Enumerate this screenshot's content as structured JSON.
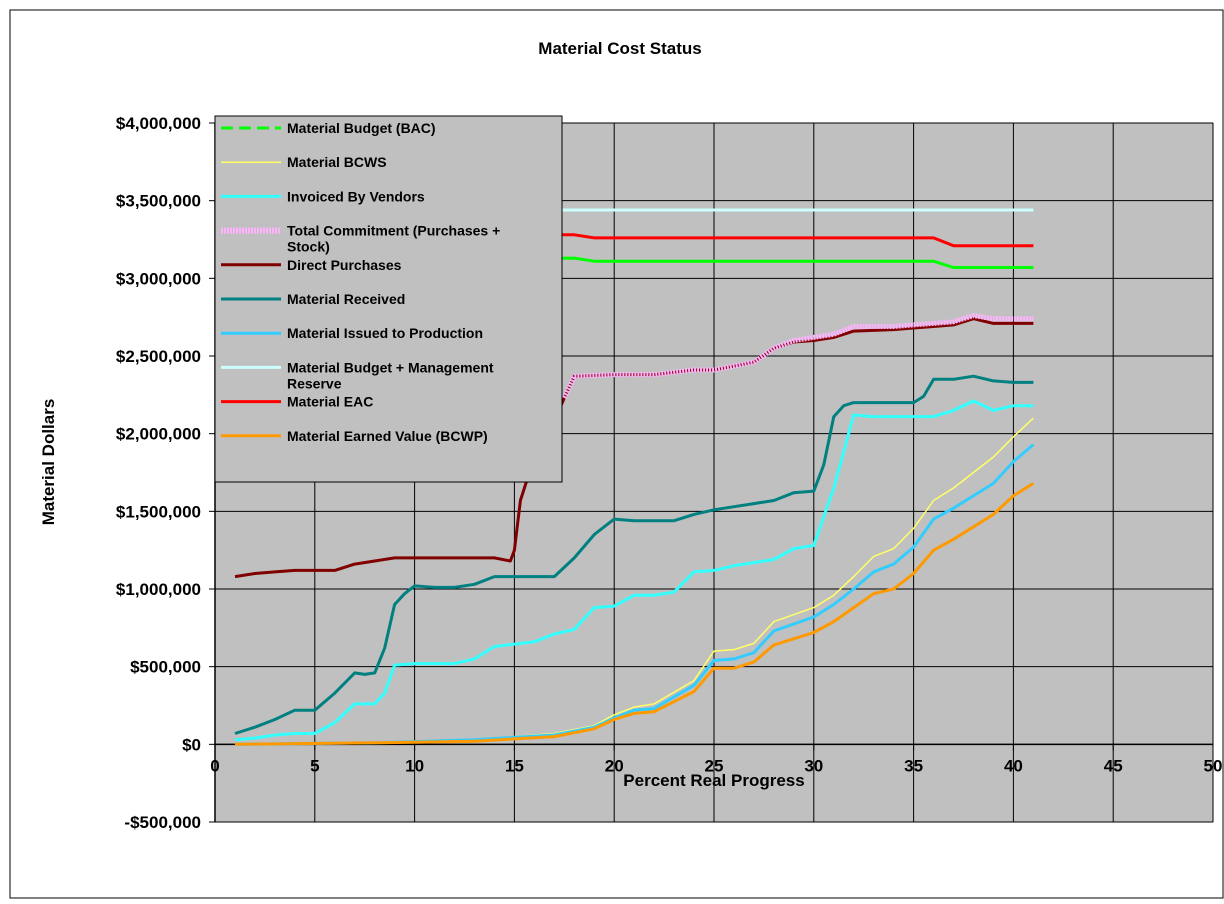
{
  "chart_data": {
    "type": "line",
    "title": "Material Cost Status",
    "xlabel": "Percent Real Progress",
    "ylabel": "Material Dollars",
    "xlim": [
      0,
      50
    ],
    "ylim": [
      -500000,
      4000000
    ],
    "x_ticks": [
      0,
      5,
      10,
      15,
      20,
      25,
      30,
      35,
      40,
      45,
      50
    ],
    "x_tick_labels": [
      "0",
      "5",
      "10",
      "15",
      "20",
      "25",
      "30",
      "35",
      "40",
      "45",
      "50"
    ],
    "y_ticks": [
      -500000,
      0,
      500000,
      1000000,
      1500000,
      2000000,
      2500000,
      3000000,
      3500000,
      4000000
    ],
    "y_tick_labels": [
      "-$500,000",
      "$0",
      "$500,000",
      "$1,000,000",
      "$1,500,000",
      "$2,000,000",
      "$2,500,000",
      "$3,000,000",
      "$3,500,000",
      "$4,000,000"
    ],
    "grid": true,
    "plot_background": "#c0c0c0",
    "legend_position": "top-left",
    "series": [
      {
        "name": "Material Budget (BAC)",
        "color": "#00ff00",
        "dash": true,
        "points": [
          [
            1,
            3110000
          ],
          [
            18,
            3130000
          ],
          [
            19,
            3110000
          ],
          [
            36,
            3110000
          ],
          [
            37,
            3070000
          ],
          [
            41,
            3070000
          ]
        ]
      },
      {
        "name": "Material BCWS",
        "color": "#ffff66",
        "points": [
          [
            1,
            0
          ],
          [
            8,
            10000
          ],
          [
            13,
            30000
          ],
          [
            17,
            70000
          ],
          [
            19,
            120000
          ],
          [
            20,
            190000
          ],
          [
            21,
            240000
          ],
          [
            22,
            260000
          ],
          [
            24,
            410000
          ],
          [
            25,
            600000
          ],
          [
            26,
            610000
          ],
          [
            27,
            650000
          ],
          [
            28,
            790000
          ],
          [
            30,
            880000
          ],
          [
            31,
            960000
          ],
          [
            32,
            1080000
          ],
          [
            33,
            1210000
          ],
          [
            34,
            1260000
          ],
          [
            35,
            1390000
          ],
          [
            36,
            1570000
          ],
          [
            37,
            1650000
          ],
          [
            39,
            1850000
          ],
          [
            40,
            1980000
          ],
          [
            41,
            2100000
          ]
        ]
      },
      {
        "name": "Invoiced By Vendors",
        "color": "#33ffff",
        "points": [
          [
            1,
            30000
          ],
          [
            2,
            40000
          ],
          [
            3,
            60000
          ],
          [
            4,
            70000
          ],
          [
            5,
            70000
          ],
          [
            6,
            140000
          ],
          [
            7,
            260000
          ],
          [
            8,
            260000
          ],
          [
            8.5,
            330000
          ],
          [
            9,
            510000
          ],
          [
            10,
            520000
          ],
          [
            12,
            520000
          ],
          [
            13,
            550000
          ],
          [
            14,
            630000
          ],
          [
            16,
            660000
          ],
          [
            17,
            710000
          ],
          [
            18,
            740000
          ],
          [
            19,
            880000
          ],
          [
            20,
            890000
          ],
          [
            21,
            960000
          ],
          [
            22,
            960000
          ],
          [
            23,
            980000
          ],
          [
            24,
            1110000
          ],
          [
            25,
            1120000
          ],
          [
            26,
            1150000
          ],
          [
            27,
            1170000
          ],
          [
            28,
            1190000
          ],
          [
            29,
            1260000
          ],
          [
            30,
            1280000
          ],
          [
            31,
            1650000
          ],
          [
            32,
            2120000
          ],
          [
            33,
            2110000
          ],
          [
            36,
            2110000
          ],
          [
            37,
            2150000
          ],
          [
            38,
            2210000
          ],
          [
            39,
            2150000
          ],
          [
            40,
            2180000
          ],
          [
            41,
            2180000
          ]
        ]
      },
      {
        "name": "Total Commitment (Purchases + Stock)",
        "color": "#ffb3ff",
        "points": [
          [
            17.5,
            2230000
          ],
          [
            18,
            2370000
          ],
          [
            20,
            2380000
          ],
          [
            22,
            2380000
          ],
          [
            24,
            2410000
          ],
          [
            25,
            2410000
          ],
          [
            27,
            2460000
          ],
          [
            28,
            2550000
          ],
          [
            29,
            2600000
          ],
          [
            30,
            2620000
          ],
          [
            31,
            2640000
          ],
          [
            32,
            2690000
          ],
          [
            34,
            2690000
          ],
          [
            35,
            2700000
          ],
          [
            36,
            2710000
          ],
          [
            37,
            2720000
          ],
          [
            38,
            2760000
          ],
          [
            39,
            2740000
          ],
          [
            41,
            2740000
          ]
        ]
      },
      {
        "name": "Direct Purchases",
        "color": "#800000",
        "points": [
          [
            1,
            1080000
          ],
          [
            2,
            1100000
          ],
          [
            3,
            1110000
          ],
          [
            4,
            1120000
          ],
          [
            5,
            1120000
          ],
          [
            6,
            1120000
          ],
          [
            7,
            1160000
          ],
          [
            8,
            1180000
          ],
          [
            9,
            1200000
          ],
          [
            10,
            1200000
          ],
          [
            12,
            1200000
          ],
          [
            13,
            1200000
          ],
          [
            14,
            1200000
          ],
          [
            14.8,
            1180000
          ],
          [
            15,
            1250000
          ],
          [
            15.3,
            1570000
          ],
          [
            15.6,
            1690000
          ],
          [
            16,
            1950000
          ],
          [
            17,
            2080000
          ],
          [
            17.5,
            2230000
          ],
          [
            18,
            2370000
          ],
          [
            20,
            2380000
          ],
          [
            22,
            2380000
          ],
          [
            24,
            2410000
          ],
          [
            25,
            2410000
          ],
          [
            27,
            2460000
          ],
          [
            28,
            2550000
          ],
          [
            29,
            2590000
          ],
          [
            30,
            2600000
          ],
          [
            31,
            2620000
          ],
          [
            32,
            2660000
          ],
          [
            34,
            2670000
          ],
          [
            35,
            2680000
          ],
          [
            36,
            2690000
          ],
          [
            37,
            2700000
          ],
          [
            38,
            2740000
          ],
          [
            39,
            2710000
          ],
          [
            41,
            2710000
          ]
        ]
      },
      {
        "name": "Material Received",
        "color": "#008080",
        "points": [
          [
            1,
            70000
          ],
          [
            2,
            110000
          ],
          [
            3,
            160000
          ],
          [
            4,
            220000
          ],
          [
            4.5,
            220000
          ],
          [
            5,
            220000
          ],
          [
            6,
            330000
          ],
          [
            7,
            460000
          ],
          [
            7.5,
            450000
          ],
          [
            8,
            460000
          ],
          [
            8.5,
            620000
          ],
          [
            9,
            900000
          ],
          [
            9.5,
            970000
          ],
          [
            10,
            1020000
          ],
          [
            11,
            1010000
          ],
          [
            12,
            1010000
          ],
          [
            13,
            1030000
          ],
          [
            14,
            1080000
          ],
          [
            16,
            1080000
          ],
          [
            17,
            1080000
          ],
          [
            18,
            1200000
          ],
          [
            19,
            1350000
          ],
          [
            20,
            1450000
          ],
          [
            21,
            1440000
          ],
          [
            23,
            1440000
          ],
          [
            24,
            1480000
          ],
          [
            25,
            1510000
          ],
          [
            26,
            1530000
          ],
          [
            27,
            1550000
          ],
          [
            28,
            1570000
          ],
          [
            29,
            1620000
          ],
          [
            30,
            1630000
          ],
          [
            30.5,
            1800000
          ],
          [
            31,
            2110000
          ],
          [
            31.5,
            2180000
          ],
          [
            32,
            2200000
          ],
          [
            34,
            2200000
          ],
          [
            35,
            2200000
          ],
          [
            35.5,
            2240000
          ],
          [
            36,
            2350000
          ],
          [
            37,
            2350000
          ],
          [
            38,
            2370000
          ],
          [
            39,
            2340000
          ],
          [
            40,
            2330000
          ],
          [
            41,
            2330000
          ]
        ]
      },
      {
        "name": "Material Issued to Production",
        "color": "#33ccff",
        "points": [
          [
            1,
            0
          ],
          [
            8,
            10000
          ],
          [
            13,
            30000
          ],
          [
            17,
            60000
          ],
          [
            19,
            110000
          ],
          [
            20,
            170000
          ],
          [
            21,
            220000
          ],
          [
            22,
            230000
          ],
          [
            24,
            380000
          ],
          [
            25,
            540000
          ],
          [
            26,
            550000
          ],
          [
            27,
            590000
          ],
          [
            28,
            730000
          ],
          [
            30,
            820000
          ],
          [
            31,
            900000
          ],
          [
            32,
            1000000
          ],
          [
            33,
            1110000
          ],
          [
            34,
            1160000
          ],
          [
            35,
            1270000
          ],
          [
            36,
            1450000
          ],
          [
            37,
            1520000
          ],
          [
            39,
            1680000
          ],
          [
            40,
            1820000
          ],
          [
            41,
            1930000
          ]
        ]
      },
      {
        "name": "Material Budget + Management Reserve",
        "color": "#ccffff",
        "points": [
          [
            14,
            3440000
          ],
          [
            41,
            3440000
          ]
        ]
      },
      {
        "name": "Material EAC",
        "color": "#ff0000",
        "points": [
          [
            14,
            3280000
          ],
          [
            18,
            3280000
          ],
          [
            19,
            3260000
          ],
          [
            36,
            3260000
          ],
          [
            37,
            3210000
          ],
          [
            41,
            3210000
          ]
        ]
      },
      {
        "name": "Material Earned Value (BCWP)",
        "color": "#ff9900",
        "points": [
          [
            1,
            0
          ],
          [
            8,
            10000
          ],
          [
            13,
            20000
          ],
          [
            17,
            50000
          ],
          [
            19,
            100000
          ],
          [
            20,
            160000
          ],
          [
            21,
            200000
          ],
          [
            22,
            210000
          ],
          [
            24,
            340000
          ],
          [
            25,
            490000
          ],
          [
            26,
            490000
          ],
          [
            27,
            530000
          ],
          [
            28,
            640000
          ],
          [
            30,
            720000
          ],
          [
            31,
            790000
          ],
          [
            32,
            880000
          ],
          [
            33,
            970000
          ],
          [
            34,
            1000000
          ],
          [
            35,
            1100000
          ],
          [
            36,
            1250000
          ],
          [
            37,
            1320000
          ],
          [
            39,
            1480000
          ],
          [
            40,
            1600000
          ],
          [
            41,
            1680000
          ]
        ]
      }
    ]
  }
}
